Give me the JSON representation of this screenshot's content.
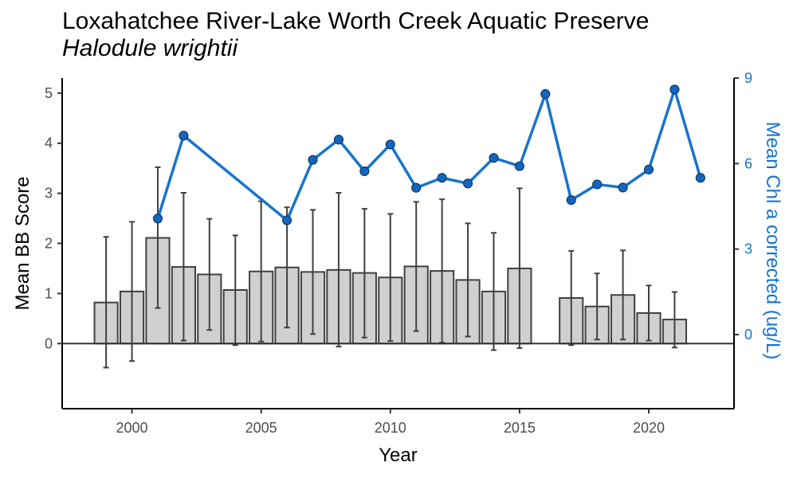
{
  "chart_data": {
    "type": "bar",
    "title": "Loxahatchee River-Lake Worth Creek Aquatic Preserve",
    "subtitle": "Halodule wrightii",
    "xlabel": "Year",
    "ylabel": "Mean BB Score",
    "y2label": "Mean Chl a corrected (ug/L)",
    "xlim": [
      1997.3,
      2023.3
    ],
    "ylim": [
      -1.3,
      5.3
    ],
    "y2lim": [
      -2.6,
      9
    ],
    "x_ticks": [
      "2000",
      "2005",
      "2010",
      "2015",
      "2020"
    ],
    "y_ticks": [
      "0",
      "1",
      "2",
      "3",
      "4",
      "5"
    ],
    "y2_ticks": [
      "0",
      "3",
      "6",
      "9"
    ],
    "grid": false,
    "colors": {
      "bars": "#d0d0d0",
      "bar_edge": "#404040",
      "line": "#1874cd",
      "points": "#1565c0",
      "right_axis": "#1874cd"
    },
    "bars": [
      {
        "year": 1999,
        "mean": 0.82,
        "lower": -0.48,
        "upper": 2.13
      },
      {
        "year": 2000,
        "mean": 1.04,
        "lower": -0.35,
        "upper": 2.43
      },
      {
        "year": 2001,
        "mean": 2.11,
        "lower": 0.71,
        "upper": 3.52
      },
      {
        "year": 2002,
        "mean": 1.53,
        "lower": 0.06,
        "upper": 3.01
      },
      {
        "year": 2003,
        "mean": 1.38,
        "lower": 0.27,
        "upper": 2.49
      },
      {
        "year": 2004,
        "mean": 1.07,
        "lower": -0.03,
        "upper": 2.16
      },
      {
        "year": 2005,
        "mean": 1.44,
        "lower": 0.04,
        "upper": 2.84
      },
      {
        "year": 2006,
        "mean": 1.52,
        "lower": 0.32,
        "upper": 2.72
      },
      {
        "year": 2007,
        "mean": 1.43,
        "lower": 0.19,
        "upper": 2.67
      },
      {
        "year": 2008,
        "mean": 1.47,
        "lower": -0.06,
        "upper": 3.01
      },
      {
        "year": 2009,
        "mean": 1.41,
        "lower": 0.12,
        "upper": 2.69
      },
      {
        "year": 2010,
        "mean": 1.32,
        "lower": 0.05,
        "upper": 2.59
      },
      {
        "year": 2011,
        "mean": 1.54,
        "lower": 0.25,
        "upper": 2.83
      },
      {
        "year": 2012,
        "mean": 1.45,
        "lower": 0.02,
        "upper": 2.88
      },
      {
        "year": 2013,
        "mean": 1.27,
        "lower": 0.14,
        "upper": 2.4
      },
      {
        "year": 2014,
        "mean": 1.04,
        "lower": -0.13,
        "upper": 2.21
      },
      {
        "year": 2015,
        "mean": 1.5,
        "lower": -0.09,
        "upper": 3.1
      },
      {
        "year": 2017,
        "mean": 0.91,
        "lower": -0.03,
        "upper": 1.85
      },
      {
        "year": 2018,
        "mean": 0.74,
        "lower": 0.08,
        "upper": 1.4
      },
      {
        "year": 2019,
        "mean": 0.97,
        "lower": 0.08,
        "upper": 1.86
      },
      {
        "year": 2020,
        "mean": 0.61,
        "lower": 0.06,
        "upper": 1.16
      },
      {
        "year": 2021,
        "mean": 0.48,
        "lower": -0.08,
        "upper": 1.03
      }
    ],
    "chl_series": [
      {
        "year": 2001,
        "value": 4.07
      },
      {
        "year": 2002,
        "value": 6.98
      },
      {
        "year": 2006,
        "value": 4.01
      },
      {
        "year": 2007,
        "value": 6.13
      },
      {
        "year": 2008,
        "value": 6.84
      },
      {
        "year": 2009,
        "value": 5.73
      },
      {
        "year": 2010,
        "value": 6.67
      },
      {
        "year": 2011,
        "value": 5.15
      },
      {
        "year": 2012,
        "value": 5.5
      },
      {
        "year": 2013,
        "value": 5.3
      },
      {
        "year": 2014,
        "value": 6.2
      },
      {
        "year": 2015,
        "value": 5.91
      },
      {
        "year": 2016,
        "value": 8.44
      },
      {
        "year": 2017,
        "value": 4.72
      },
      {
        "year": 2018,
        "value": 5.27
      },
      {
        "year": 2019,
        "value": 5.16
      },
      {
        "year": 2020,
        "value": 5.79
      },
      {
        "year": 2021,
        "value": 8.6
      },
      {
        "year": 2022,
        "value": 5.5
      }
    ]
  }
}
